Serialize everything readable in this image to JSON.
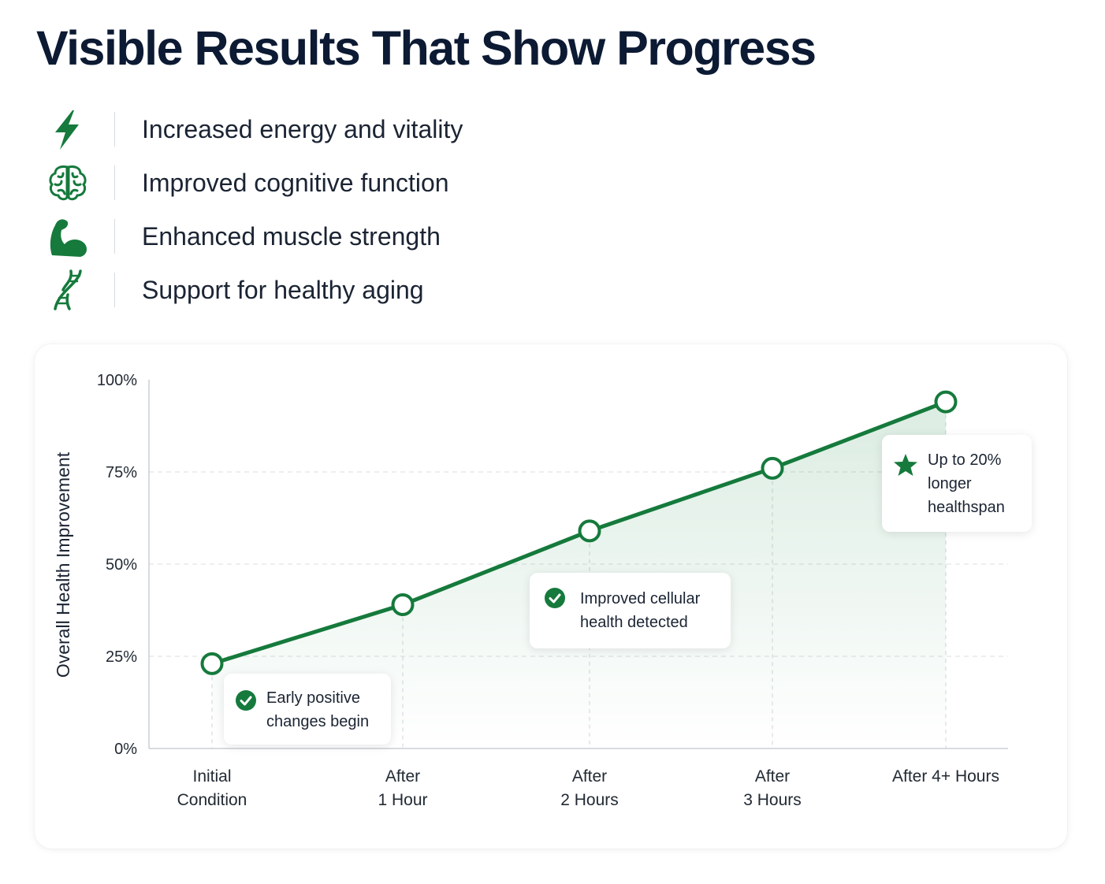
{
  "title": "Visible Results That Show Progress",
  "benefits": [
    {
      "icon": "lightning-bolt-icon",
      "label": "Increased energy and vitality"
    },
    {
      "icon": "brain-icon",
      "label": "Improved cognitive function"
    },
    {
      "icon": "flexed-bicep-icon",
      "label": "Enhanced muscle strength"
    },
    {
      "icon": "dna-icon",
      "label": "Support for healthy aging"
    }
  ],
  "colors": {
    "accent": "#157a3c",
    "title": "#0c1a33",
    "text": "#1b2433",
    "grid": "#d9dde1"
  },
  "chart_data": {
    "type": "line",
    "ylabel": "Overall Health Improvement",
    "xlabel": "",
    "categories": [
      "Initial\nCondition",
      "After\n1 Hour",
      "After\n2 Hours",
      "After\n3 Hours",
      "After 4+ Hours"
    ],
    "values": [
      23,
      39,
      59,
      76,
      94
    ],
    "ylim": [
      0,
      100
    ],
    "yticks": [
      "0%",
      "25%",
      "50%",
      "75%",
      "100%"
    ],
    "ytick_values": [
      0,
      25,
      50,
      75,
      100
    ],
    "grid": "dashed horizontal and vertical",
    "area_fill": true,
    "annotations": [
      {
        "icon": "check-circle-icon",
        "text": "Early positive\nchanges begin",
        "point": 0
      },
      {
        "icon": "check-circle-icon",
        "text": "Improved cellular\nhealth detected",
        "point": 2
      },
      {
        "icon": "star-icon",
        "text": "Up to 20%\nlonger\nhealthspan",
        "point": 4
      }
    ]
  }
}
